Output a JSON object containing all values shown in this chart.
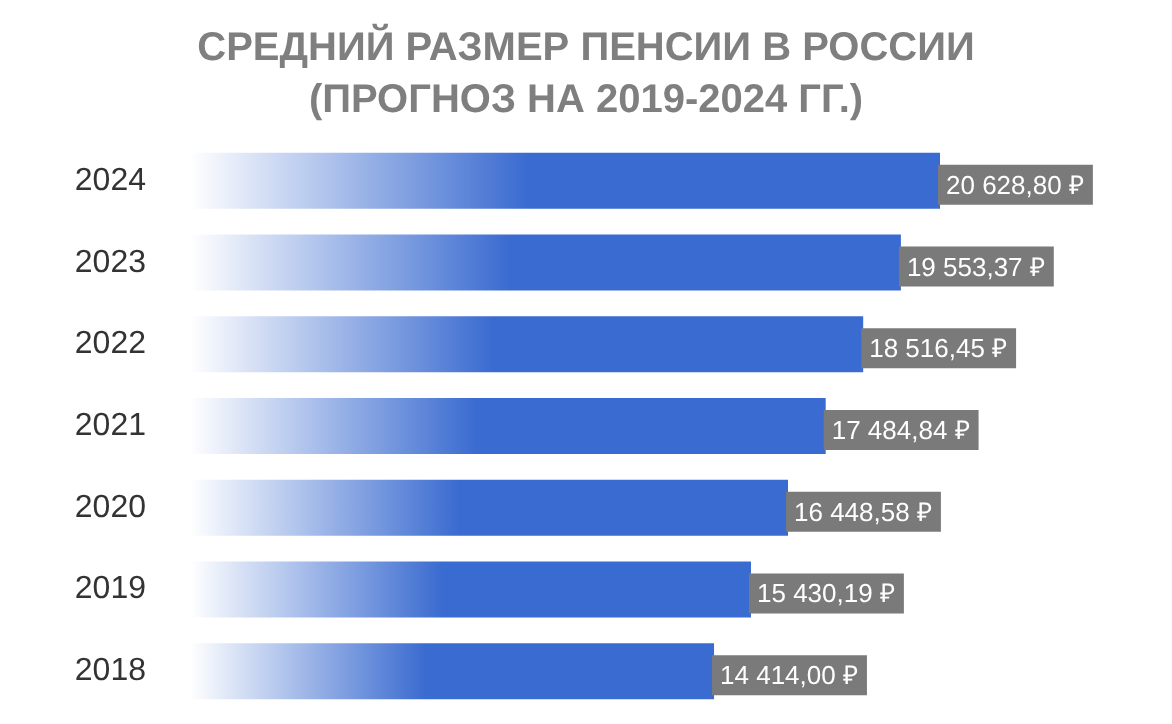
{
  "chart_data": {
    "type": "bar",
    "orientation": "horizontal",
    "title": "СРЕДНИЙ РАЗМЕР ПЕНСИИ В РОССИИ\n(ПРОГНОЗ НА 2019-2024 ГГ.)",
    "categories": [
      "2024",
      "2023",
      "2022",
      "2021",
      "2020",
      "2019",
      "2018"
    ],
    "values": [
      20628.8,
      19553.37,
      18516.45,
      17484.84,
      16448.58,
      15430.19,
      14414.0
    ],
    "value_labels": [
      "20 628,80 ₽",
      "19 553,37 ₽",
      "18 516,45 ₽",
      "17 484,84 ₽",
      "16 448,58 ₽",
      "15 430,19 ₽",
      "14 414,00 ₽"
    ],
    "color": "#3a6bd0"
  }
}
